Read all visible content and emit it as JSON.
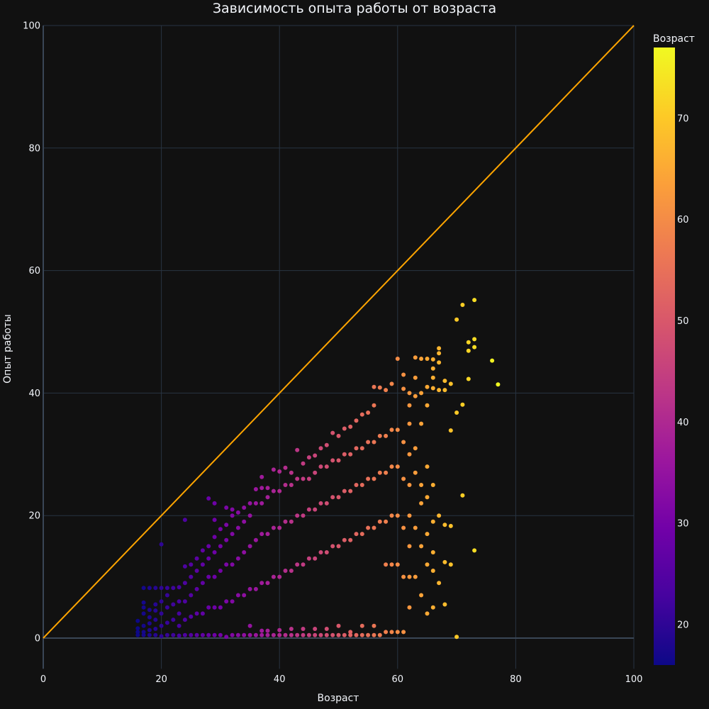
{
  "chart_data": {
    "type": "scatter",
    "title": "Зависимость опыта работы от возраста",
    "xlabel": "Возраст",
    "ylabel": "Опыт работы",
    "xlim": [
      0,
      100
    ],
    "ylim": [
      -5,
      100
    ],
    "x_ticks": [
      "0",
      "20",
      "40",
      "60",
      "80",
      "100"
    ],
    "y_ticks": [
      "0",
      "20",
      "40",
      "60",
      "80",
      "100"
    ],
    "grid": true,
    "colorbar": {
      "title": "Возраст",
      "range": [
        16,
        77
      ],
      "ticks": [
        "20",
        "30",
        "40",
        "50",
        "60",
        "70"
      ],
      "colorscale": [
        "#0d0887",
        "#46039f",
        "#7201a8",
        "#9c179e",
        "#bd3786",
        "#d8576b",
        "#ed7953",
        "#fb9f3a",
        "#fdca26",
        "#f0f921"
      ]
    },
    "reference_line": {
      "x": [
        0,
        100
      ],
      "y": [
        0,
        100
      ],
      "color": "#ffa500"
    },
    "background_color": "#111111",
    "grid_color": "#283442",
    "points": [
      [
        16,
        0.5
      ],
      [
        16,
        1
      ],
      [
        16,
        1.6
      ],
      [
        16,
        2.8
      ],
      [
        17,
        0.5
      ],
      [
        17,
        1
      ],
      [
        17,
        2
      ],
      [
        17,
        4
      ],
      [
        17,
        5
      ],
      [
        17,
        5.8
      ],
      [
        17,
        8.2
      ],
      [
        18,
        0.5
      ],
      [
        18,
        1.3
      ],
      [
        18,
        2.4
      ],
      [
        18,
        3.4
      ],
      [
        18,
        4.6
      ],
      [
        18,
        8.2
      ],
      [
        19,
        0.5
      ],
      [
        19,
        1.5
      ],
      [
        19,
        3
      ],
      [
        19,
        4.5
      ],
      [
        19,
        5.5
      ],
      [
        19,
        8.2
      ],
      [
        20,
        0.3
      ],
      [
        20,
        2
      ],
      [
        20,
        4
      ],
      [
        20,
        6
      ],
      [
        20,
        8.2
      ],
      [
        20,
        15.3
      ],
      [
        21,
        0.5
      ],
      [
        21,
        2.5
      ],
      [
        21,
        5
      ],
      [
        21,
        7
      ],
      [
        21,
        8.2
      ],
      [
        22,
        0.5
      ],
      [
        22,
        3
      ],
      [
        22,
        5.5
      ],
      [
        22,
        8.2
      ],
      [
        23,
        0.4
      ],
      [
        23,
        2
      ],
      [
        23,
        4
      ],
      [
        23,
        6
      ],
      [
        23,
        8.3
      ],
      [
        24,
        0.5
      ],
      [
        24,
        3
      ],
      [
        24,
        6
      ],
      [
        24,
        9
      ],
      [
        24,
        11.7
      ],
      [
        24,
        19.3
      ],
      [
        25,
        0.5
      ],
      [
        25,
        3.5
      ],
      [
        25,
        7
      ],
      [
        25,
        10
      ],
      [
        25,
        12
      ],
      [
        26,
        0.5
      ],
      [
        26,
        4
      ],
      [
        26,
        8
      ],
      [
        26,
        11
      ],
      [
        26,
        13
      ],
      [
        27,
        0.5
      ],
      [
        27,
        4
      ],
      [
        27,
        9
      ],
      [
        27,
        12
      ],
      [
        27,
        14.3
      ],
      [
        28,
        0.5
      ],
      [
        28,
        5
      ],
      [
        28,
        10
      ],
      [
        28,
        13
      ],
      [
        28,
        15
      ],
      [
        28,
        22.8
      ],
      [
        29,
        0.5
      ],
      [
        29,
        5
      ],
      [
        29,
        10
      ],
      [
        29,
        14
      ],
      [
        29,
        16.5
      ],
      [
        29,
        19.3
      ],
      [
        29,
        22
      ],
      [
        30,
        0.5
      ],
      [
        30,
        5
      ],
      [
        30,
        11
      ],
      [
        30,
        15
      ],
      [
        30,
        17.8
      ],
      [
        31,
        0.2
      ],
      [
        31,
        6
      ],
      [
        31,
        12
      ],
      [
        31,
        16
      ],
      [
        31,
        18.5
      ],
      [
        31,
        21.3
      ],
      [
        32,
        0.5
      ],
      [
        32,
        6
      ],
      [
        32,
        12
      ],
      [
        32,
        17
      ],
      [
        32,
        20
      ],
      [
        32,
        21
      ],
      [
        33,
        0.5
      ],
      [
        33,
        7
      ],
      [
        33,
        13
      ],
      [
        33,
        18
      ],
      [
        33,
        20.5
      ],
      [
        34,
        0.5
      ],
      [
        34,
        7
      ],
      [
        34,
        14
      ],
      [
        34,
        19
      ],
      [
        34,
        21.3
      ],
      [
        35,
        0.5
      ],
      [
        35,
        2
      ],
      [
        35,
        8
      ],
      [
        35,
        15
      ],
      [
        35,
        20
      ],
      [
        35,
        22
      ],
      [
        36,
        0.5
      ],
      [
        36,
        8
      ],
      [
        36,
        16
      ],
      [
        36,
        22
      ],
      [
        36,
        24.3
      ],
      [
        37,
        0.5
      ],
      [
        37,
        1.2
      ],
      [
        37,
        9
      ],
      [
        37,
        17
      ],
      [
        37,
        22
      ],
      [
        37,
        24.5
      ],
      [
        37,
        26.3
      ],
      [
        38,
        0.5
      ],
      [
        38,
        1.2
      ],
      [
        38,
        9
      ],
      [
        38,
        17
      ],
      [
        38,
        23
      ],
      [
        38,
        24.5
      ],
      [
        39,
        0.5
      ],
      [
        39,
        10
      ],
      [
        39,
        18
      ],
      [
        39,
        24
      ],
      [
        39,
        27.5
      ],
      [
        40,
        0.5
      ],
      [
        40,
        1.3
      ],
      [
        40,
        10
      ],
      [
        40,
        18
      ],
      [
        40,
        24
      ],
      [
        40,
        27.2
      ],
      [
        41,
        0.5
      ],
      [
        41,
        11
      ],
      [
        41,
        19
      ],
      [
        41,
        25
      ],
      [
        41,
        27.8
      ],
      [
        42,
        0.5
      ],
      [
        42,
        1.5
      ],
      [
        42,
        11
      ],
      [
        42,
        19
      ],
      [
        42,
        25
      ],
      [
        42,
        27
      ],
      [
        43,
        0.5
      ],
      [
        43,
        12
      ],
      [
        43,
        20
      ],
      [
        43,
        26
      ],
      [
        43,
        30.7
      ],
      [
        44,
        0.5
      ],
      [
        44,
        1.5
      ],
      [
        44,
        12
      ],
      [
        44,
        20
      ],
      [
        44,
        26
      ],
      [
        44,
        28.5
      ],
      [
        45,
        0.5
      ],
      [
        45,
        13
      ],
      [
        45,
        21
      ],
      [
        45,
        26
      ],
      [
        45,
        29.5
      ],
      [
        46,
        0.5
      ],
      [
        46,
        1.5
      ],
      [
        46,
        13
      ],
      [
        46,
        21
      ],
      [
        46,
        27
      ],
      [
        46,
        29.8
      ],
      [
        47,
        0.5
      ],
      [
        47,
        14
      ],
      [
        47,
        22
      ],
      [
        47,
        28
      ],
      [
        47,
        31
      ],
      [
        48,
        0.5
      ],
      [
        48,
        1.5
      ],
      [
        48,
        14
      ],
      [
        48,
        22
      ],
      [
        48,
        28
      ],
      [
        48,
        31.5
      ],
      [
        49,
        0.5
      ],
      [
        49,
        15
      ],
      [
        49,
        23
      ],
      [
        49,
        29
      ],
      [
        49,
        33.5
      ],
      [
        50,
        0.5
      ],
      [
        50,
        2
      ],
      [
        50,
        15
      ],
      [
        50,
        23
      ],
      [
        50,
        29
      ],
      [
        50,
        33
      ],
      [
        51,
        0.5
      ],
      [
        51,
        16
      ],
      [
        51,
        24
      ],
      [
        51,
        30
      ],
      [
        51,
        34.2
      ],
      [
        52,
        0.5
      ],
      [
        52,
        1
      ],
      [
        52,
        16
      ],
      [
        52,
        24
      ],
      [
        52,
        30
      ],
      [
        52,
        34.5
      ],
      [
        53,
        0.5
      ],
      [
        53,
        17
      ],
      [
        53,
        25
      ],
      [
        53,
        31
      ],
      [
        53,
        35.5
      ],
      [
        54,
        0.5
      ],
      [
        54,
        2
      ],
      [
        54,
        17
      ],
      [
        54,
        25
      ],
      [
        54,
        31
      ],
      [
        54,
        36.5
      ],
      [
        55,
        0.5
      ],
      [
        55,
        18
      ],
      [
        55,
        26
      ],
      [
        55,
        32
      ],
      [
        55,
        36.8
      ],
      [
        56,
        0.5
      ],
      [
        56,
        2
      ],
      [
        56,
        18
      ],
      [
        56,
        26
      ],
      [
        56,
        32
      ],
      [
        56,
        38
      ],
      [
        56,
        41
      ],
      [
        57,
        0.5
      ],
      [
        57,
        19
      ],
      [
        57,
        27
      ],
      [
        57,
        33
      ],
      [
        57,
        40.9
      ],
      [
        58,
        1
      ],
      [
        58,
        12
      ],
      [
        58,
        19
      ],
      [
        58,
        27
      ],
      [
        58,
        33
      ],
      [
        58,
        40.5
      ],
      [
        59,
        1
      ],
      [
        59,
        12
      ],
      [
        59,
        20
      ],
      [
        59,
        28
      ],
      [
        59,
        34
      ],
      [
        59,
        41.5
      ],
      [
        60,
        1
      ],
      [
        60,
        12
      ],
      [
        60,
        20
      ],
      [
        60,
        28
      ],
      [
        60,
        34
      ],
      [
        60,
        45.6
      ],
      [
        61,
        1
      ],
      [
        61,
        10
      ],
      [
        61,
        18
      ],
      [
        61,
        26
      ],
      [
        61,
        32
      ],
      [
        61,
        40.7
      ],
      [
        61,
        43
      ],
      [
        62,
        5
      ],
      [
        62,
        10
      ],
      [
        62,
        15
      ],
      [
        62,
        20
      ],
      [
        62,
        25
      ],
      [
        62,
        30
      ],
      [
        62,
        35
      ],
      [
        62,
        38
      ],
      [
        62,
        40
      ],
      [
        63,
        10
      ],
      [
        63,
        18
      ],
      [
        63,
        27
      ],
      [
        63,
        31
      ],
      [
        63,
        39.5
      ],
      [
        63,
        42.5
      ],
      [
        63,
        45.8
      ],
      [
        64,
        7
      ],
      [
        64,
        15
      ],
      [
        64,
        22
      ],
      [
        64,
        25
      ],
      [
        64,
        35
      ],
      [
        64,
        40
      ],
      [
        64,
        45.6
      ],
      [
        65,
        4
      ],
      [
        65,
        12
      ],
      [
        65,
        17
      ],
      [
        65,
        23
      ],
      [
        65,
        28
      ],
      [
        65,
        38
      ],
      [
        65,
        41
      ],
      [
        65,
        45.6
      ],
      [
        66,
        5
      ],
      [
        66,
        11
      ],
      [
        66,
        14
      ],
      [
        66,
        19
      ],
      [
        66,
        25
      ],
      [
        66,
        40.8
      ],
      [
        66,
        42.5
      ],
      [
        66,
        44
      ],
      [
        66,
        45.5
      ],
      [
        67,
        9
      ],
      [
        67,
        20
      ],
      [
        67,
        40.5
      ],
      [
        67,
        45
      ],
      [
        67,
        46.5
      ],
      [
        67,
        47.3
      ],
      [
        68,
        5.5
      ],
      [
        68,
        12.4
      ],
      [
        68,
        18.5
      ],
      [
        68,
        40.5
      ],
      [
        68,
        42
      ],
      [
        69,
        12
      ],
      [
        69,
        18.3
      ],
      [
        69,
        33.9
      ],
      [
        69,
        41.5
      ],
      [
        70,
        0.2
      ],
      [
        70,
        36.8
      ],
      [
        70,
        52
      ],
      [
        71,
        23.3
      ],
      [
        71,
        38.1
      ],
      [
        71,
        54.4
      ],
      [
        72,
        42.3
      ],
      [
        72,
        46.9
      ],
      [
        72,
        48.3
      ],
      [
        73,
        14.3
      ],
      [
        73,
        47.5
      ],
      [
        73,
        48.8
      ],
      [
        73,
        55.2
      ],
      [
        76,
        45.3
      ],
      [
        77,
        41.4
      ]
    ]
  }
}
